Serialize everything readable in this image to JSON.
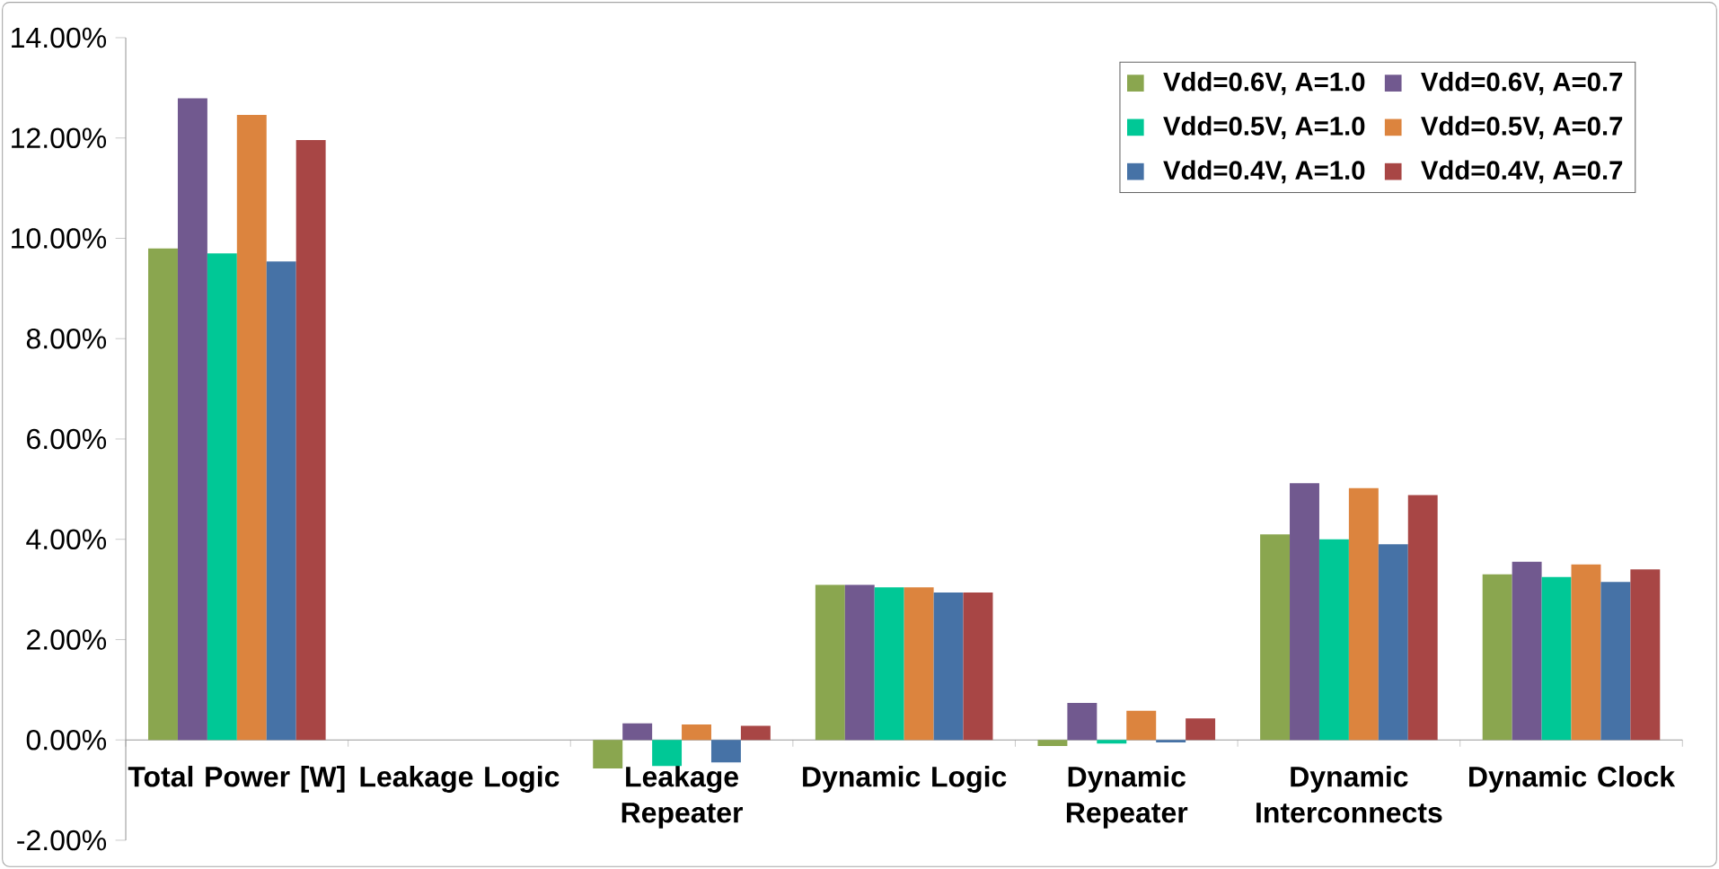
{
  "chart_data": {
    "type": "bar",
    "categories": [
      "Total Power [W]",
      "Leakage Logic",
      "Leakage Repeater",
      "Dynamic Logic",
      "Dynamic Repeater",
      "Dynamic Interconnects",
      "Dynamic Clock"
    ],
    "series": [
      {
        "name": "Vdd=0.6V, A=1.0",
        "color": "#8aa64f",
        "values": [
          9.8,
          0,
          -0.57,
          3.09,
          -0.12,
          4.1,
          3.3
        ]
      },
      {
        "name": "Vdd=0.6V, A=0.7",
        "color": "#71598f",
        "values": [
          12.79,
          0,
          0.33,
          3.09,
          0.74,
          5.12,
          3.55
        ]
      },
      {
        "name": "Vdd=0.5V, A=1.0",
        "color": "#00c896",
        "values": [
          9.7,
          0,
          -0.52,
          3.04,
          -0.07,
          4.0,
          3.25
        ]
      },
      {
        "name": "Vdd=0.5V, A=0.7",
        "color": "#dc843e",
        "values": [
          12.46,
          0,
          0.31,
          3.04,
          0.58,
          5.02,
          3.5
        ]
      },
      {
        "name": "Vdd=0.4V, A=1.0",
        "color": "#4672a6",
        "values": [
          9.54,
          0,
          -0.45,
          2.94,
          -0.05,
          3.9,
          3.15
        ]
      },
      {
        "name": "Vdd=0.4V, A=0.7",
        "color": "#a84645",
        "values": [
          11.96,
          0,
          0.28,
          2.94,
          0.43,
          4.88,
          3.4
        ]
      }
    ],
    "ylim": [
      -2,
      14
    ],
    "yticks": [
      {
        "value": -2,
        "label": "-2.00%"
      },
      {
        "value": 0,
        "label": "0.00%"
      },
      {
        "value": 2,
        "label": "2.00%"
      },
      {
        "value": 4,
        "label": "4.00%"
      },
      {
        "value": 6,
        "label": "6.00%"
      },
      {
        "value": 8,
        "label": "8.00%"
      },
      {
        "value": 10,
        "label": "10.00%"
      },
      {
        "value": 12,
        "label": "12.00%"
      },
      {
        "value": 14,
        "label": "14.00%"
      }
    ],
    "legend": "top right"
  }
}
